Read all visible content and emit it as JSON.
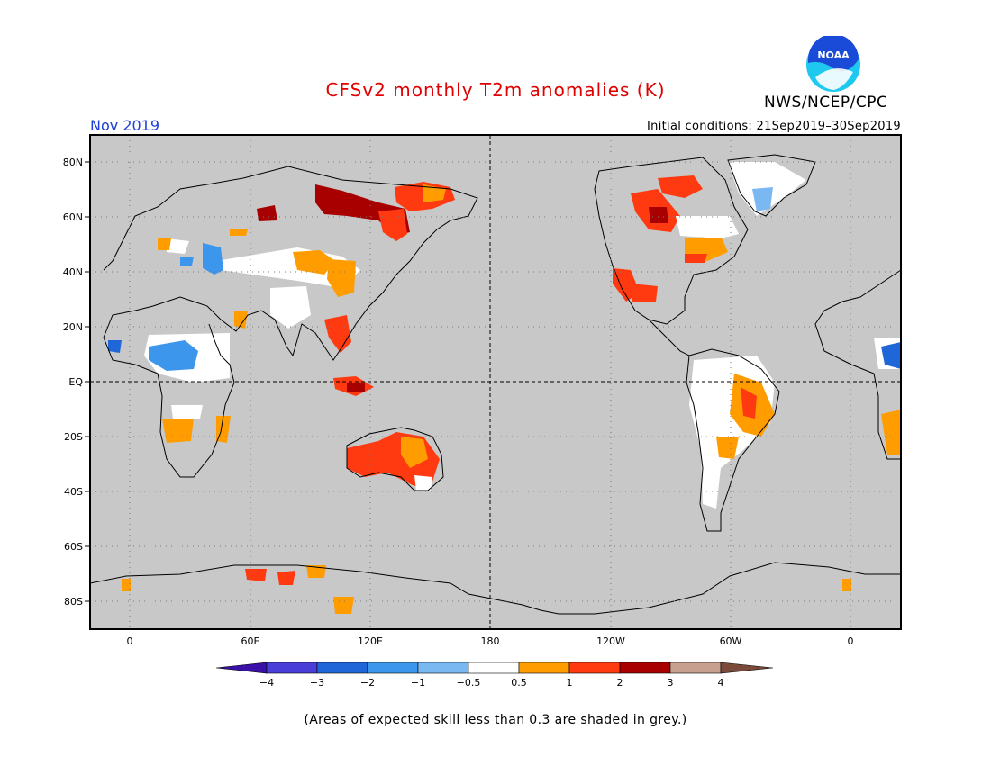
{
  "title": "CFSv2 monthly T2m anomalies (K)",
  "org": "NWS/NCEP/CPC",
  "logo": {
    "text": "NOAA",
    "colors": {
      "blue": "#1a4bd8",
      "cyan": "#1ec8ef"
    }
  },
  "month": "Nov 2019",
  "initial_conditions": "Initial conditions: 21Sep2019–30Sep2019",
  "footnote": "(Areas of expected skill less than 0.3 are shaded in grey.)",
  "map": {
    "land_background": "#c8c8c8",
    "lat_labels": [
      "80N",
      "60N",
      "40N",
      "20N",
      "EQ",
      "20S",
      "40S",
      "60S",
      "80S"
    ],
    "lon_labels": [
      "0",
      "60E",
      "120E",
      "180",
      "120W",
      "60W",
      "0"
    ]
  },
  "colorbar": {
    "labels": [
      "−4",
      "−3",
      "−2",
      "−1",
      "−0.5",
      "0.5",
      "1",
      "2",
      "3",
      "4"
    ],
    "colors": [
      "#3a10a8",
      "#4a3ed8",
      "#1f66d8",
      "#3c96ec",
      "#7ab8f2",
      "#ffffff",
      "#ff9d00",
      "#ff3a10",
      "#a80000",
      "#c8a090",
      "#7a4a3a"
    ]
  }
}
